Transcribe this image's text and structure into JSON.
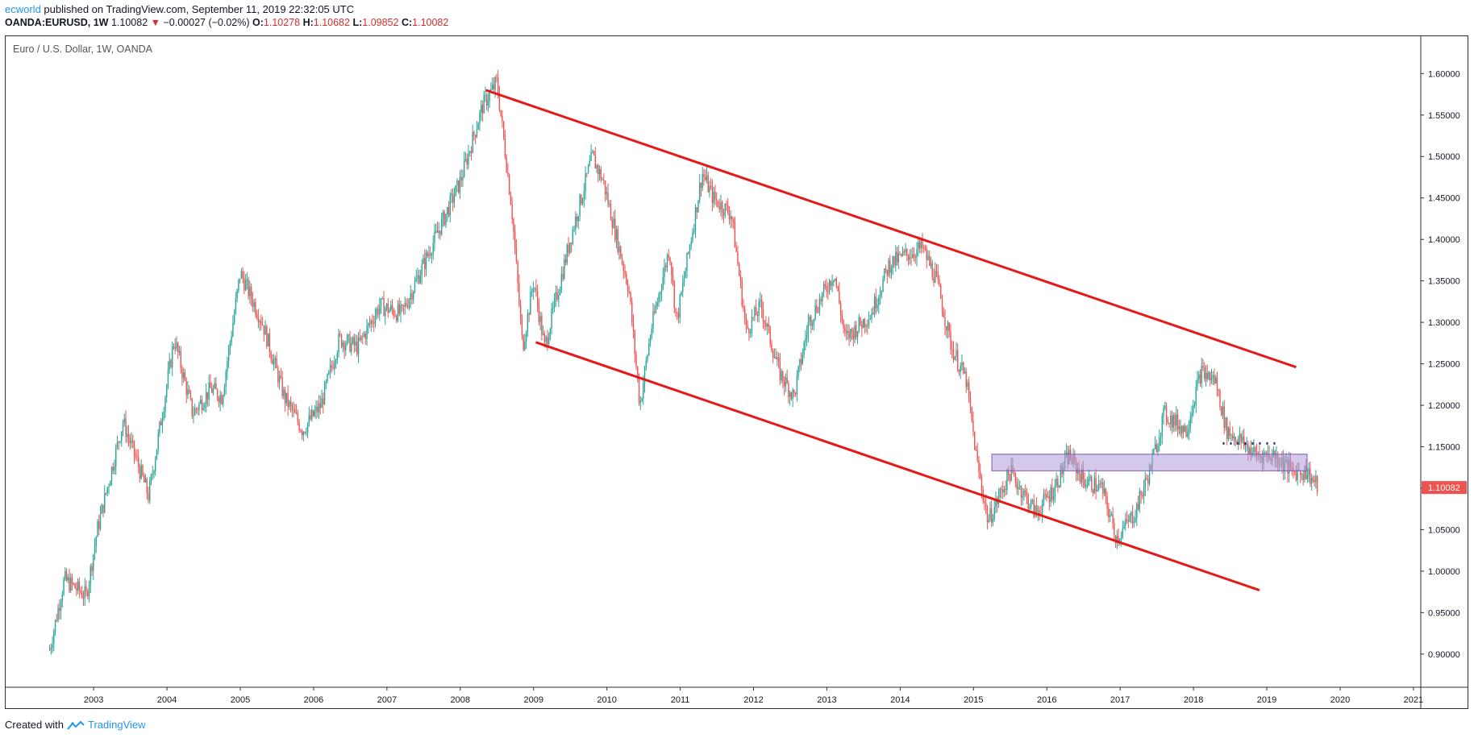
{
  "header": {
    "author": "ecworld",
    "published_text": " published on TradingView.com, September 11, 2019 22:32:05 UTC",
    "symbol": "OANDA:EURUSD, 1W",
    "last": "1.10082",
    "arrow": "▼",
    "change": "−0.00027 (−0.02%)",
    "o_label": "O:",
    "o_value": "1.10278",
    "h_label": "H:",
    "h_value": "1.10682",
    "l_label": "L:",
    "l_value": "1.09852",
    "c_label": "C:",
    "c_value": "1.10082"
  },
  "footer": {
    "created_with": "Created with",
    "brand": "TradingView"
  },
  "colors": {
    "up": "#26a69a",
    "down": "#ef5350",
    "trendline": "#e61919",
    "zone_fill": "#b39ddb",
    "zone_border": "#7e57c2",
    "price_badge": "#ef5350"
  },
  "chart_data": {
    "type": "candlestick",
    "title": "Euro / U.S. Dollar, 1W, OANDA",
    "ylim": [
      0.86,
      1.645
    ],
    "xlim": [
      2001.8,
      2021.1
    ],
    "y_ticks": [
      "1.60000",
      "1.55000",
      "1.50000",
      "1.45000",
      "1.40000",
      "1.35000",
      "1.30000",
      "1.25000",
      "1.20000",
      "1.15000",
      "1.10000",
      "1.05000",
      "1.00000",
      "0.95000",
      "0.90000"
    ],
    "x_ticks": [
      "2003",
      "2004",
      "2005",
      "2006",
      "2007",
      "2008",
      "2009",
      "2010",
      "2011",
      "2012",
      "2013",
      "2014",
      "2015",
      "2016",
      "2017",
      "2018",
      "2019",
      "2020",
      "2021"
    ],
    "last_price": "1.10082",
    "price_path": [
      [
        2002.4,
        0.905
      ],
      [
        2002.6,
        0.99
      ],
      [
        2002.9,
        0.97
      ],
      [
        2003.05,
        1.05
      ],
      [
        2003.4,
        1.18
      ],
      [
        2003.6,
        1.13
      ],
      [
        2003.75,
        1.09
      ],
      [
        2004.1,
        1.28
      ],
      [
        2004.35,
        1.19
      ],
      [
        2004.6,
        1.22
      ],
      [
        2004.75,
        1.21
      ],
      [
        2005.0,
        1.36
      ],
      [
        2005.3,
        1.3
      ],
      [
        2005.6,
        1.21
      ],
      [
        2005.85,
        1.17
      ],
      [
        2006.1,
        1.2
      ],
      [
        2006.35,
        1.28
      ],
      [
        2006.6,
        1.27
      ],
      [
        2006.9,
        1.32
      ],
      [
        2007.2,
        1.31
      ],
      [
        2007.5,
        1.37
      ],
      [
        2007.8,
        1.43
      ],
      [
        2008.0,
        1.47
      ],
      [
        2008.3,
        1.56
      ],
      [
        2008.5,
        1.59
      ],
      [
        2008.7,
        1.44
      ],
      [
        2008.85,
        1.27
      ],
      [
        2009.0,
        1.35
      ],
      [
        2009.15,
        1.27
      ],
      [
        2009.5,
        1.4
      ],
      [
        2009.8,
        1.5
      ],
      [
        2009.95,
        1.47
      ],
      [
        2010.3,
        1.34
      ],
      [
        2010.45,
        1.2
      ],
      [
        2010.6,
        1.29
      ],
      [
        2010.85,
        1.39
      ],
      [
        2010.95,
        1.3
      ],
      [
        2011.3,
        1.48
      ],
      [
        2011.45,
        1.45
      ],
      [
        2011.7,
        1.43
      ],
      [
        2011.9,
        1.29
      ],
      [
        2012.1,
        1.32
      ],
      [
        2012.35,
        1.24
      ],
      [
        2012.55,
        1.21
      ],
      [
        2012.75,
        1.3
      ],
      [
        2013.1,
        1.36
      ],
      [
        2013.25,
        1.28
      ],
      [
        2013.6,
        1.31
      ],
      [
        2013.85,
        1.37
      ],
      [
        2014.05,
        1.38
      ],
      [
        2014.3,
        1.39
      ],
      [
        2014.5,
        1.35
      ],
      [
        2014.7,
        1.27
      ],
      [
        2014.9,
        1.23
      ],
      [
        2015.05,
        1.13
      ],
      [
        2015.2,
        1.06
      ],
      [
        2015.5,
        1.12
      ],
      [
        2015.85,
        1.07
      ],
      [
        2016.1,
        1.1
      ],
      [
        2016.3,
        1.14
      ],
      [
        2016.5,
        1.11
      ],
      [
        2016.75,
        1.1
      ],
      [
        2016.95,
        1.04
      ],
      [
        2017.2,
        1.07
      ],
      [
        2017.4,
        1.12
      ],
      [
        2017.6,
        1.19
      ],
      [
        2017.9,
        1.17
      ],
      [
        2018.1,
        1.24
      ],
      [
        2018.3,
        1.23
      ],
      [
        2018.45,
        1.17
      ],
      [
        2018.6,
        1.16
      ],
      [
        2018.85,
        1.14
      ],
      [
        2019.1,
        1.14
      ],
      [
        2019.35,
        1.12
      ],
      [
        2019.55,
        1.12
      ],
      [
        2019.7,
        1.1
      ]
    ],
    "annotations": {
      "upper_trendline": [
        [
          2008.35,
          1.58
        ],
        [
          2019.4,
          1.246
        ]
      ],
      "lower_trendline": [
        [
          2009.03,
          1.276
        ],
        [
          2018.9,
          0.977
        ]
      ],
      "zone": {
        "x": [
          2015.25,
          2019.55
        ],
        "y": [
          1.121,
          1.141
        ]
      },
      "dotted_level": {
        "x": [
          2018.4,
          2019.15
        ],
        "y": 1.154
      }
    }
  }
}
